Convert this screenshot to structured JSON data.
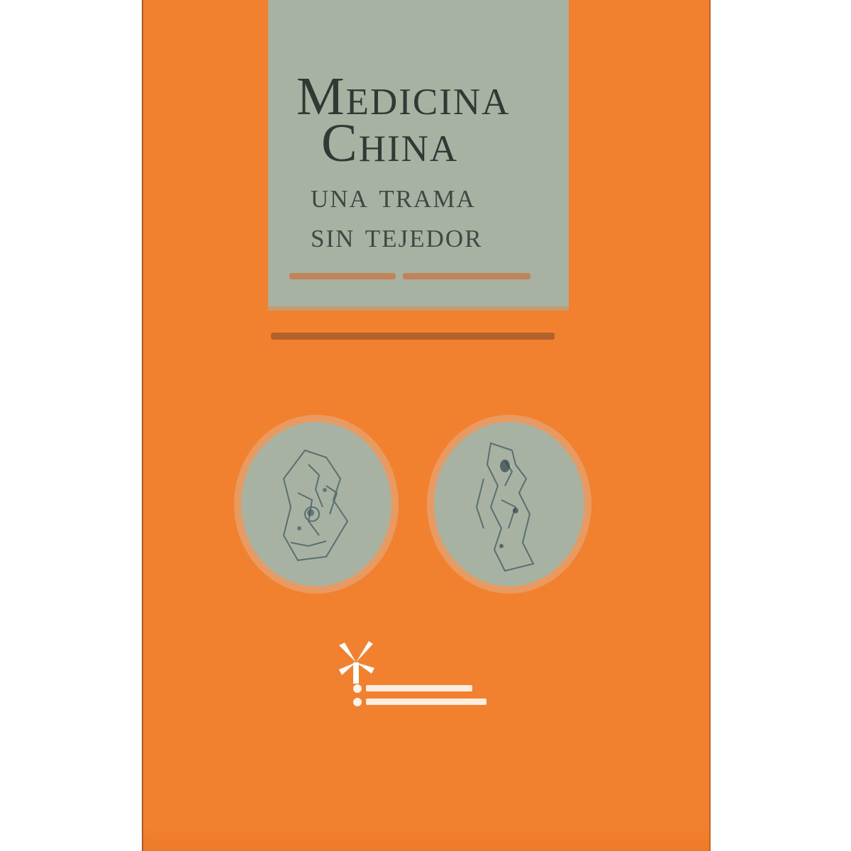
{
  "cover": {
    "title_line1": "Medicina",
    "title_line2": "China",
    "subtitle_line1": "una trama",
    "subtitle_line2": "sin tejedor",
    "colors": {
      "background": "#f2812f",
      "panel": "#a7b2a2",
      "title_text": "#2e3a33"
    }
  },
  "icons": {
    "left_medallion": "chinese-figure-medallion-icon",
    "right_medallion": "chinese-figure-medallion-icon",
    "publisher_logo": "windmill-logo-icon"
  }
}
